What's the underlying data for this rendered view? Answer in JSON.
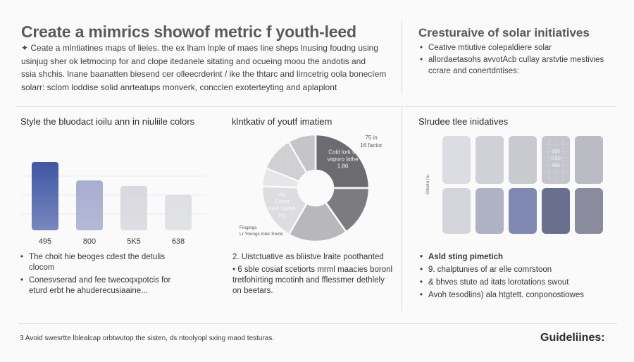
{
  "header": {
    "title": "Create a mimrics showof metric f youth-leed",
    "intro_lines": [
      "✦ Ceate a mlntiatines maps of lieies. the ex lham lnple of maes line sheps lnusing foudng using",
      "usinjug sher ok letmocinp for and clope itedanele sitating and ocueing moou the andotis and",
      "ssia shchis. lnane baanatten biesend cer olleecrderint / ike the thtarc and lirncetrig oola bonecíem",
      "solarr: sclom loddise solid anrteatups monverk, concclen exoterteyting and aplaplont"
    ]
  },
  "side_panel": {
    "title": "Cresturaive of solar initiatives",
    "bullets": [
      "Ceative mtiutive colepaldiere solar",
      "allordaetasohs avvotAcb cullay arstvtie mestivies ccrare and conertdntises:"
    ]
  },
  "sections": {
    "bar": {
      "title": "Style the bluodact ioilu ann in niuliile colors",
      "bullets": [
        "The choit hie beoges cdest the detulis clocom",
        "Conesvserad and fee twecoqxpotcis for eturd erbt he ahuderecusiaaine..."
      ]
    },
    "pie": {
      "title": "klntkativ of youtf imatiem",
      "bullets": [
        "2. Uistctuative as bliistve lraite poothanted",
        "• 6 sble cosiat scetiorts mrml maacies boronl tretfohirting mcotinh and fflessmer dethlely on beetars."
      ]
    },
    "heatmap": {
      "title": "Slrudee tlee inidatives",
      "bullets": [
        "Asld sting pimetich",
        "9. chalptunies of ar elle comrstoon",
        "& bhves stute ad itats lorotations swout",
        "Avoh tesodlins) ala htgtett. conponostiowes"
      ]
    }
  },
  "footer": {
    "note": "3 Avoid swesrtte lblealcap orbtwutop the sisten, ds ntoolyopl sxing maod testuras.",
    "guidelines_label": "Guideliines:"
  },
  "chart_data": [
    {
      "type": "bar",
      "title": "Style the bluodact ioilu ann in niuliile colors",
      "categories": [
        "495",
        "800",
        "5K5",
        "638"
      ],
      "values": [
        1.0,
        0.73,
        0.65,
        0.52
      ],
      "colors": [
        "#3f56a4",
        "#a8aed0",
        "#d8d9de",
        "#dedfe3"
      ],
      "grid": true
    },
    {
      "type": "pie",
      "style": "donut",
      "title": "klntkativ of youtf imatiem",
      "values": [
        25,
        15.3,
        18,
        17.2,
        5.6,
        10.5,
        8.4
      ],
      "colors": [
        "#6c6c70",
        "#7c7c80",
        "#b8b8bc",
        "#dddde0",
        "#e6e6e8",
        "#d2d2d5",
        "#c6c6ca"
      ],
      "slice_labels": [
        [
          "Cold lork tn",
          "vaporo lathe",
          "1.86"
        ],
        [],
        [],
        [
          "Ad",
          "Cover",
          "Iuse Gable",
          "Iny"
        ],
        [],
        [],
        []
      ],
      "callout": [
        "75 in",
        "16 factor"
      ],
      "legend": [
        "Fingings",
        "Lr Youngs inter Socte"
      ]
    },
    {
      "type": "heatmap",
      "title": "Slrudee tlee inidatives",
      "rows": 2,
      "cols": 5,
      "colors": [
        [
          "#dcdde2",
          "#d0d1d6",
          "#c9cad0",
          "#c3c4cc",
          "#bbbcc3"
        ],
        [
          "#d4d5da",
          "#afb2c5",
          "#7f89b1",
          "#6b6f8e",
          "#8a8c9e"
        ]
      ],
      "cell_text": {
        "row": 0,
        "col": 3,
        "lines": [
          "000",
          "0.00",
          "450"
        ]
      },
      "ylabel": "Sllcelo nu"
    }
  ]
}
